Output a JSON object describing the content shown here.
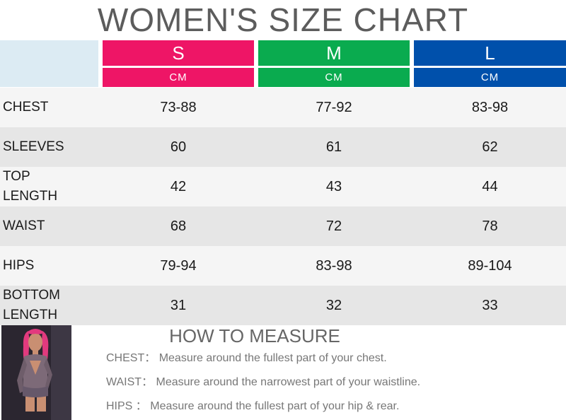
{
  "title": "WOMEN'S SIZE CHART",
  "sizes": [
    {
      "name": "S",
      "unit": "CM",
      "color": "#ee1566"
    },
    {
      "name": "M",
      "unit": "CM",
      "color": "#0aab4f"
    },
    {
      "name": "L",
      "unit": "CM",
      "color": "#0050ab"
    }
  ],
  "rows": [
    {
      "label": "CHEST",
      "values": [
        "73-88",
        "77-92",
        "83-98"
      ]
    },
    {
      "label": "SLEEVES",
      "values": [
        "60",
        "61",
        "62"
      ]
    },
    {
      "label": "TOP LENGTH",
      "values": [
        "42",
        "43",
        "44"
      ]
    },
    {
      "label": "WAIST",
      "values": [
        "68",
        "72",
        "78"
      ]
    },
    {
      "label": "HIPS",
      "values": [
        "79-94",
        "83-98",
        "89-104"
      ]
    },
    {
      "label": "BOTTOM LENGTH",
      "values": [
        "31",
        "32",
        "33"
      ]
    }
  ],
  "how_to": {
    "title": "HOW TO MEASURE",
    "tips": [
      {
        "key": "CHEST：",
        "text": "Measure around the fullest part of your chest."
      },
      {
        "key": "WAIST：",
        "text": "Measure around the narrowest part of your waistline."
      },
      {
        "key": "HIPS ：",
        "text": "Measure around the fullest part of your hip & rear."
      }
    ]
  }
}
